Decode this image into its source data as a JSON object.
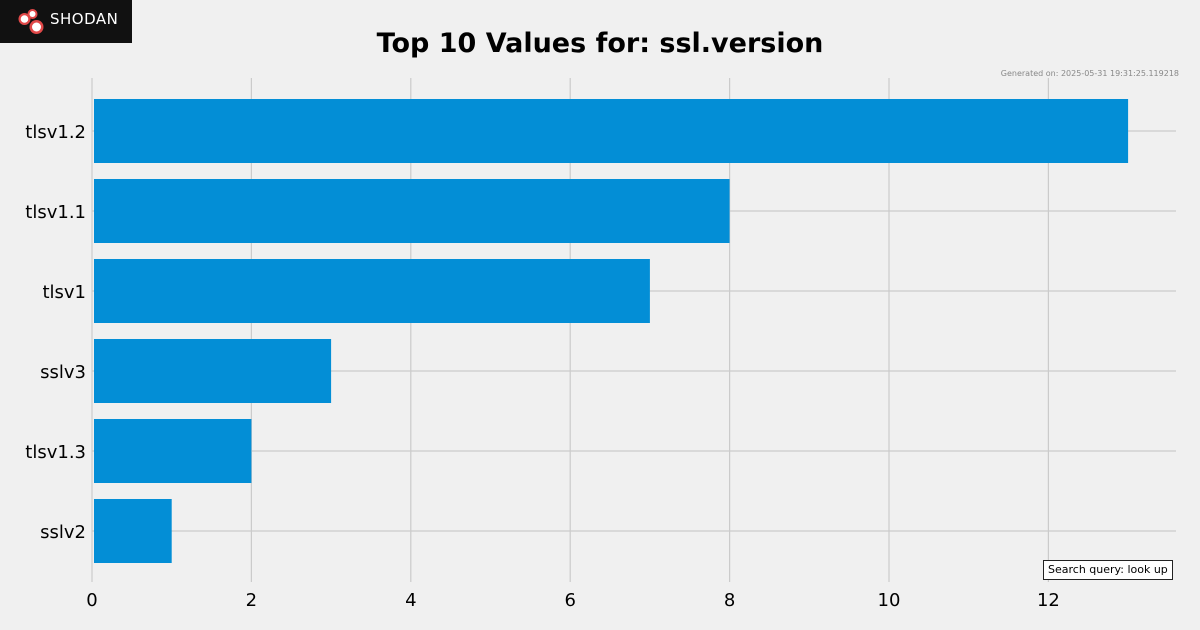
{
  "branding": {
    "logo_text": "SHODAN"
  },
  "header": {
    "generated_text": "Generated on: 2025-05-31 19:31:25.119218"
  },
  "footer": {
    "search_query_text": "Search query: look up"
  },
  "colors": {
    "background": "#f0f0f0",
    "bar": "#038ed6",
    "grid": "#cbcbcb",
    "logo_background": "#111111",
    "logo_accent": "#e04848"
  },
  "chart_data": {
    "type": "bar",
    "orientation": "horizontal",
    "title": "Top 10 Values for: ssl.version",
    "xlabel": "",
    "ylabel": "",
    "categories": [
      "tlsv1.2",
      "tlsv1.1",
      "tlsv1",
      "sslv3",
      "tlsv1.3",
      "sslv2"
    ],
    "values": [
      13,
      8,
      7,
      3,
      2,
      1
    ],
    "xlim": [
      0,
      13.6
    ],
    "x_ticks": [
      0,
      2,
      4,
      6,
      8,
      10,
      12
    ],
    "grid": true,
    "legend": "none"
  }
}
